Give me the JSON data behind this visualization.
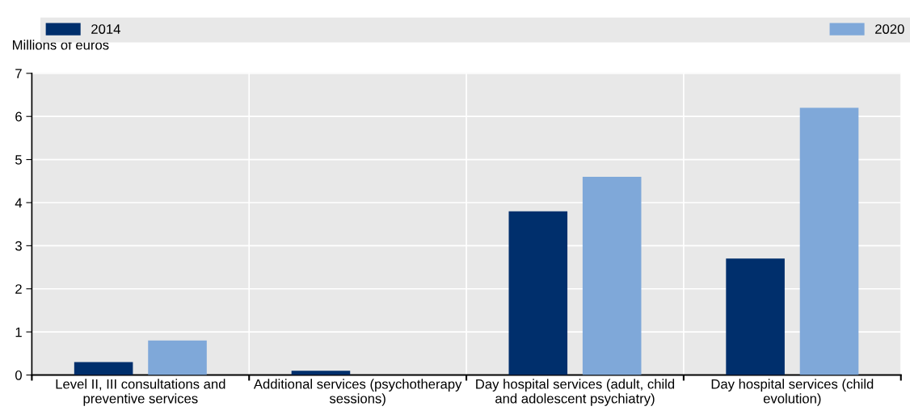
{
  "chart_data": {
    "type": "bar",
    "ylabel": "Millions of euros",
    "categories": [
      "Level II, III consultations and\npreventive services",
      "Additional services (psychotherapy\nsessions)",
      "Day hospital services (adult, child\nand adolescent psychiatry)",
      "Day hospital services (child\nevolution)"
    ],
    "series": [
      {
        "name": "2014",
        "color": "#002f6c",
        "values": [
          0.3,
          0.1,
          3.8,
          2.7
        ]
      },
      {
        "name": "2020",
        "color": "#7fa8d9",
        "values": [
          0.8,
          null,
          4.6,
          6.2
        ]
      }
    ],
    "ylim": [
      0,
      7
    ],
    "yticks": [
      0,
      1,
      2,
      3,
      4,
      5,
      6,
      7
    ],
    "grid": true,
    "legend": "top"
  }
}
